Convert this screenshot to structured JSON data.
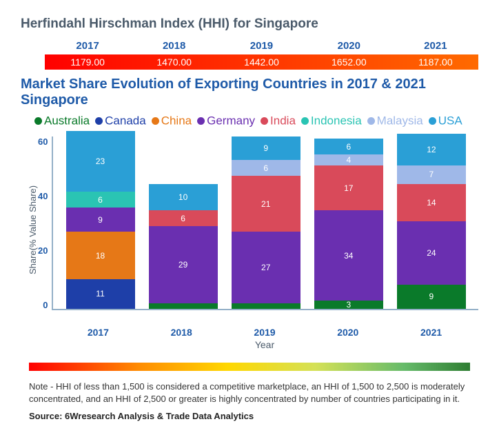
{
  "hhi": {
    "title": "Herfindahl Hirschman Index (HHI) for Singapore",
    "years": [
      "2017",
      "2018",
      "2019",
      "2020",
      "2021"
    ],
    "values": [
      "1179.00",
      "1470.00",
      "1442.00",
      "1652.00",
      "1187.00"
    ],
    "row_gradient": [
      "#ff0000",
      "#ff6a00"
    ]
  },
  "chart": {
    "title": "Market Share Evolution of Exporting Countries in 2017 & 2021 Singapore",
    "type": "stacked-bar",
    "y_label": "Share(% Value Share)",
    "x_label": "Year",
    "y_max": 65,
    "y_ticks": [
      60,
      40,
      20,
      0
    ],
    "categories": [
      "2017",
      "2018",
      "2019",
      "2020",
      "2021"
    ],
    "series": [
      {
        "name": "Australia",
        "color": "#0a7a2a"
      },
      {
        "name": "Canada",
        "color": "#1e3fa8"
      },
      {
        "name": "China",
        "color": "#e67817"
      },
      {
        "name": "Germany",
        "color": "#6a2fb0"
      },
      {
        "name": "India",
        "color": "#d94a5a"
      },
      {
        "name": "Indonesia",
        "color": "#2ac4b3"
      },
      {
        "name": "Malaysia",
        "color": "#9fb8e8"
      },
      {
        "name": "USA",
        "color": "#2a9fd6"
      }
    ],
    "stacks": {
      "2017": [
        {
          "series": "Canada",
          "value": 11,
          "label": "11"
        },
        {
          "series": "China",
          "value": 18,
          "label": "18"
        },
        {
          "series": "Germany",
          "value": 9,
          "label": "9"
        },
        {
          "series": "Indonesia",
          "value": 6,
          "label": "6"
        },
        {
          "series": "USA",
          "value": 23,
          "label": "23"
        }
      ],
      "2018": [
        {
          "series": "Australia",
          "value": 2,
          "label": ""
        },
        {
          "series": "Germany",
          "value": 29,
          "label": "29"
        },
        {
          "series": "India",
          "value": 6,
          "label": "6"
        },
        {
          "series": "USA",
          "value": 10,
          "label": "10"
        }
      ],
      "2019": [
        {
          "series": "Australia",
          "value": 2,
          "label": ""
        },
        {
          "series": "Germany",
          "value": 27,
          "label": "27"
        },
        {
          "series": "India",
          "value": 21,
          "label": "21"
        },
        {
          "series": "Malaysia",
          "value": 6,
          "label": "6"
        },
        {
          "series": "USA",
          "value": 9,
          "label": "9"
        }
      ],
      "2020": [
        {
          "series": "Australia",
          "value": 3,
          "label": "3"
        },
        {
          "series": "Germany",
          "value": 34,
          "label": "34"
        },
        {
          "series": "India",
          "value": 17,
          "label": "17"
        },
        {
          "series": "Malaysia",
          "value": 4,
          "label": "4"
        },
        {
          "series": "USA",
          "value": 6,
          "label": "6"
        }
      ],
      "2021": [
        {
          "series": "Australia",
          "value": 9,
          "label": "9"
        },
        {
          "series": "Germany",
          "value": 24,
          "label": "24"
        },
        {
          "series": "India",
          "value": 14,
          "label": "14"
        },
        {
          "series": "Malaysia",
          "value": 7,
          "label": "7"
        },
        {
          "series": "USA",
          "value": 12,
          "label": "12"
        }
      ]
    },
    "axis_color": "#94b0c8",
    "tick_color": "#1e5aa8",
    "label_fontsize": 13
  },
  "gradient_legend_colors": [
    "#ff0000",
    "#ff8c00",
    "#ffd700",
    "#d4e157",
    "#66bb6a",
    "#2e7d32"
  ],
  "note": "Note - HHI of less than 1,500 is considered a competitive marketplace, an HHI of 1,500 to 2,500 is moderately concentrated, and an HHI of 2,500 or greater is highly concentrated by number of countries participating in it.",
  "source": "Source: 6Wresearch Analysis & Trade Data Analytics"
}
